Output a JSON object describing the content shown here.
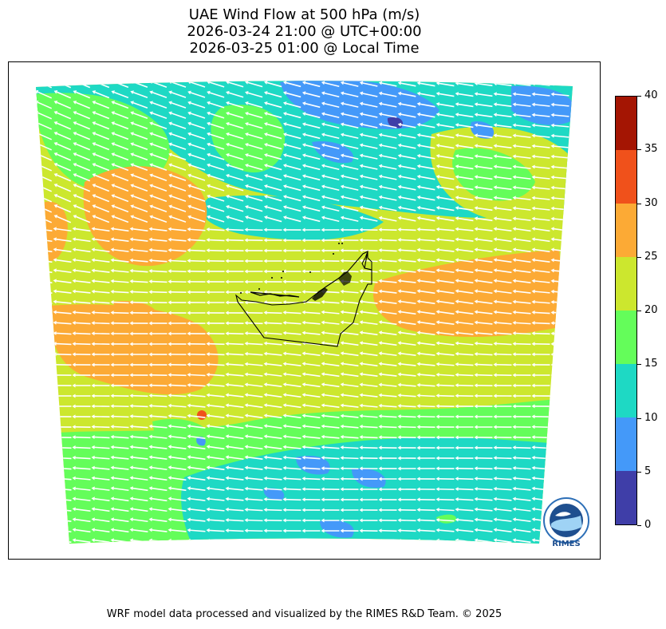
{
  "title": {
    "line1": "UAE Wind Flow at 500 hPa (m/s)",
    "line2": "2026-03-24 21:00 @ UTC+00:00",
    "line3": "2026-03-25 01:00 @ Local Time"
  },
  "colorbar": {
    "min": 0,
    "max": 40,
    "ticks": [
      "0",
      "5",
      "10",
      "15",
      "20",
      "25",
      "30",
      "35",
      "40"
    ],
    "colors": [
      "#3f3ea8",
      "#4499f9",
      "#1ed9c4",
      "#64fd5a",
      "#cce72e",
      "#fcaa35",
      "#f0511b",
      "#a41503"
    ]
  },
  "map": {
    "dominant_direction": "westward",
    "colors": {
      "c0_5": "#3f3ea8",
      "c5_10": "#4499f9",
      "c10_15": "#1ed9c4",
      "c15_20": "#64fd5a",
      "c20_25": "#cce72e",
      "c25_30": "#fcaa35",
      "c30_35": "#f0511b",
      "arrow": "#ffffff",
      "border": "#000000"
    }
  },
  "logo": {
    "text": "RIMES",
    "ring_text": "Regional Integrated Multi-Hazard Early Warning System"
  },
  "footer": "WRF model data processed and visualized by the RIMES R&D Team. © 2025"
}
